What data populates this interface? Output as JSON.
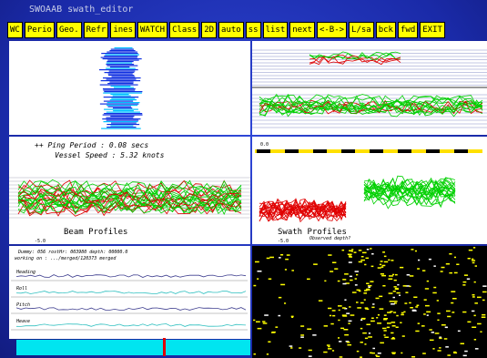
{
  "window": {
    "title": "SWOAAB swath_editor"
  },
  "toolbar": {
    "buttons": [
      "WC",
      "Perio",
      "Geo.",
      "Refr",
      "ines",
      "WATCH",
      "Class",
      "2D",
      "auto",
      "ss",
      "list",
      "next",
      "<-B->",
      "L/sa",
      "bck",
      "fwd",
      "EXIT"
    ]
  },
  "panels": {
    "ping_info": {
      "ping_period": "++ Ping Period : 0.08 secs",
      "vessel_speed": "Vessel Speed : 5.32 knots"
    },
    "beam_profiles": {
      "label": "Beam Profiles",
      "scale": "-5.0"
    },
    "swath_profiles": {
      "label": "Swath Profiles",
      "sublabel": "Observed depth?",
      "scale": "-5.0",
      "top_label": "0.0"
    },
    "nav": {
      "status": "Dummy: 056 rostHr: 003980 depth: 00000.0",
      "working_on": "working on : .../merged/120373 merged",
      "traces": [
        "Heading",
        "Roll",
        "Pitch",
        "Heave"
      ]
    }
  }
}
